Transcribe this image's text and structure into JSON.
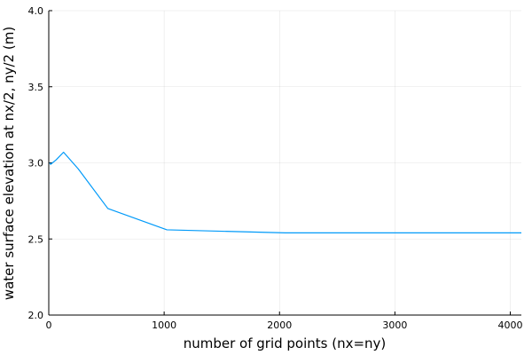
{
  "chart_data": {
    "type": "line",
    "title": "",
    "xlabel": "number of grid points (nx=ny)",
    "ylabel": "water surface elevation at nx/2, ny/2 (m)",
    "xlim": [
      0,
      4096
    ],
    "ylim": [
      2.0,
      4.0
    ],
    "xticks": [
      0,
      1000,
      2000,
      3000,
      4000
    ],
    "xtick_labels": [
      "0",
      "1000",
      "2000",
      "3000",
      "4000"
    ],
    "yticks": [
      2.0,
      2.5,
      3.0,
      3.5,
      4.0
    ],
    "ytick_labels": [
      "2.0",
      "2.5",
      "3.0",
      "3.5",
      "4.0"
    ],
    "grid": true,
    "legend": "none",
    "series": [
      {
        "color": "#009af9",
        "x": [
          8,
          16,
          32,
          64,
          128,
          256,
          512,
          1024,
          2048,
          4096
        ],
        "y": [
          3.0,
          2.99,
          3.0,
          3.02,
          3.07,
          2.96,
          2.7,
          2.56,
          2.54,
          2.54
        ]
      }
    ]
  }
}
